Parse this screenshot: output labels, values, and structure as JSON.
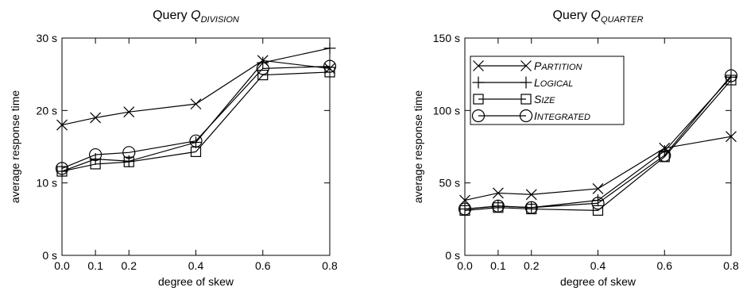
{
  "chart_data": [
    {
      "type": "line",
      "title": {
        "prefix": "Query ",
        "symbol": "Q",
        "subscript": "DIVISION"
      },
      "xlabel": "degree of skew",
      "ylabel": "average response time",
      "x": [
        0.0,
        0.1,
        0.2,
        0.4,
        0.6,
        0.8
      ],
      "x_ticks": [
        "0.0",
        "0.1",
        "0.2",
        "0.4",
        "0.6",
        "0.8"
      ],
      "xlim": [
        0.0,
        0.8
      ],
      "ylim": [
        0,
        30
      ],
      "y_ticks": [
        {
          "value": 0,
          "label": "0 s"
        },
        {
          "value": 10,
          "label": "10 s"
        },
        {
          "value": 20,
          "label": "20 s"
        },
        {
          "value": 30,
          "label": "30 s"
        }
      ],
      "grid": false,
      "legend": "none",
      "series": [
        {
          "name": "Partition",
          "marker": "x",
          "values": [
            18.0,
            19.0,
            19.8,
            20.9,
            26.9,
            25.8
          ]
        },
        {
          "name": "Logical",
          "marker": "plus",
          "values": [
            11.6,
            13.3,
            13.0,
            15.6,
            26.6,
            28.6
          ]
        },
        {
          "name": "Size",
          "marker": "square",
          "values": [
            11.6,
            12.6,
            12.9,
            14.3,
            24.9,
            25.3
          ]
        },
        {
          "name": "Integrated",
          "marker": "circle",
          "values": [
            12.0,
            13.9,
            14.2,
            15.8,
            25.8,
            26.1
          ]
        }
      ]
    },
    {
      "type": "line",
      "title": {
        "prefix": "Query ",
        "symbol": "Q",
        "subscript": "QUARTER"
      },
      "xlabel": "degree of skew",
      "ylabel": "average response time",
      "x": [
        0.0,
        0.1,
        0.2,
        0.4,
        0.6,
        0.8
      ],
      "x_ticks": [
        "0.0",
        "0.1",
        "0.2",
        "0.4",
        "0.6",
        "0.8"
      ],
      "xlim": [
        0.0,
        0.8
      ],
      "ylim": [
        0,
        150
      ],
      "y_ticks": [
        {
          "value": 0,
          "label": "0 s"
        },
        {
          "value": 50,
          "label": "50 s"
        },
        {
          "value": 100,
          "label": "100 s"
        },
        {
          "value": 150,
          "label": "150 s"
        }
      ],
      "grid": false,
      "legend": "top-left",
      "series": [
        {
          "name": "Partition",
          "marker": "x",
          "values": [
            38,
            43,
            42,
            46,
            74,
            82
          ]
        },
        {
          "name": "Logical",
          "marker": "plus",
          "values": [
            32,
            34,
            33,
            38,
            72,
            123
          ]
        },
        {
          "name": "Size",
          "marker": "square",
          "values": [
            31,
            33,
            32,
            31,
            68,
            121
          ]
        },
        {
          "name": "Integrated",
          "marker": "circle",
          "values": [
            32,
            34,
            33,
            36,
            69,
            124
          ]
        }
      ]
    }
  ],
  "legend_labels": [
    {
      "first": "P",
      "rest": "ARTITION"
    },
    {
      "first": "L",
      "rest": "OGICAL"
    },
    {
      "first": "S",
      "rest": "IZE"
    },
    {
      "first": "I",
      "rest": "NTEGRATED"
    }
  ]
}
